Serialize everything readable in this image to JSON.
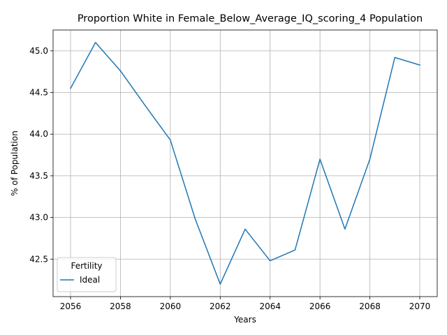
{
  "chart_data": {
    "type": "line",
    "title": "Proportion White in Female_Below_Average_IQ_scoring_4 Population",
    "xlabel": "Years",
    "ylabel": "% of Population",
    "x": [
      2056,
      2057,
      2058,
      2059,
      2060,
      2061,
      2062,
      2063,
      2064,
      2065,
      2066,
      2067,
      2068,
      2069,
      2070
    ],
    "series": [
      {
        "name": "Ideal",
        "color": "#1f77b4",
        "values": [
          44.55,
          45.1,
          44.76,
          44.34,
          43.93,
          42.98,
          42.2,
          42.86,
          42.48,
          42.61,
          43.7,
          42.86,
          43.7,
          44.92,
          44.83
        ]
      }
    ],
    "xlim": [
      2055.3,
      2070.7
    ],
    "ylim": [
      42.05,
      45.25
    ],
    "xticks": [
      2056,
      2058,
      2060,
      2062,
      2064,
      2066,
      2068,
      2070
    ],
    "yticks": [
      42.5,
      43.0,
      43.5,
      44.0,
      44.5,
      45.0
    ],
    "ytick_labels": [
      "42.5",
      "43.0",
      "43.5",
      "44.0",
      "44.5",
      "45.0"
    ],
    "grid": true,
    "legend": {
      "title": "Fertility",
      "placement": "lower-left"
    }
  }
}
